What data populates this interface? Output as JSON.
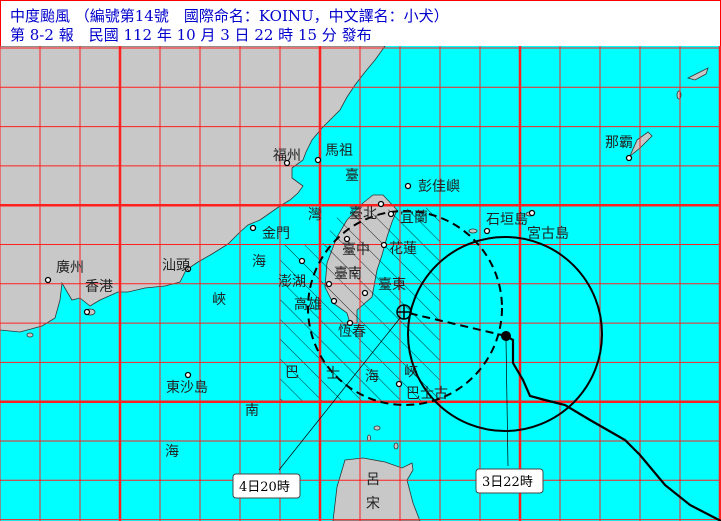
{
  "header": {
    "line1": "中度颱風 （編號第14號　國際命名：KOINU，中文譯名：小犬）",
    "line2": "第 8-2 報　民國 112 年 10 月 3 日 22 時 15 分 發布"
  },
  "colors": {
    "sea": "#00ffff",
    "land": "#c8c8c8",
    "grid": "#ff2020",
    "title": "#0000cc"
  },
  "places": {
    "fuzhou": "福州",
    "mazu": "馬祖",
    "pengjiayu": "彭佳嶼",
    "taipei": "臺北",
    "yilan": "宜蘭",
    "kinmen": "金門",
    "taichung": "臺中",
    "hualien": "花蓮",
    "tainan": "臺南",
    "penghu": "澎湖",
    "taitung": "臺東",
    "kaohsiung": "高雄",
    "hengchun": "恆春",
    "guangzhou": "廣州",
    "hongkong": "香港",
    "shantou": "汕頭",
    "dongsha": "東沙島",
    "ishigaki": "石垣島",
    "miyako": "宮古島",
    "naha": "那霸",
    "strait": [
      "臺",
      "灣",
      "海",
      "峽"
    ],
    "bashi": [
      "巴",
      "士",
      "海",
      "峽"
    ],
    "bashi_small": "巴士古",
    "scs": [
      "南",
      "海"
    ],
    "luzon": [
      "呂",
      "宋"
    ]
  },
  "labels": {
    "forecast": "4日20時",
    "current": "3日22時"
  }
}
